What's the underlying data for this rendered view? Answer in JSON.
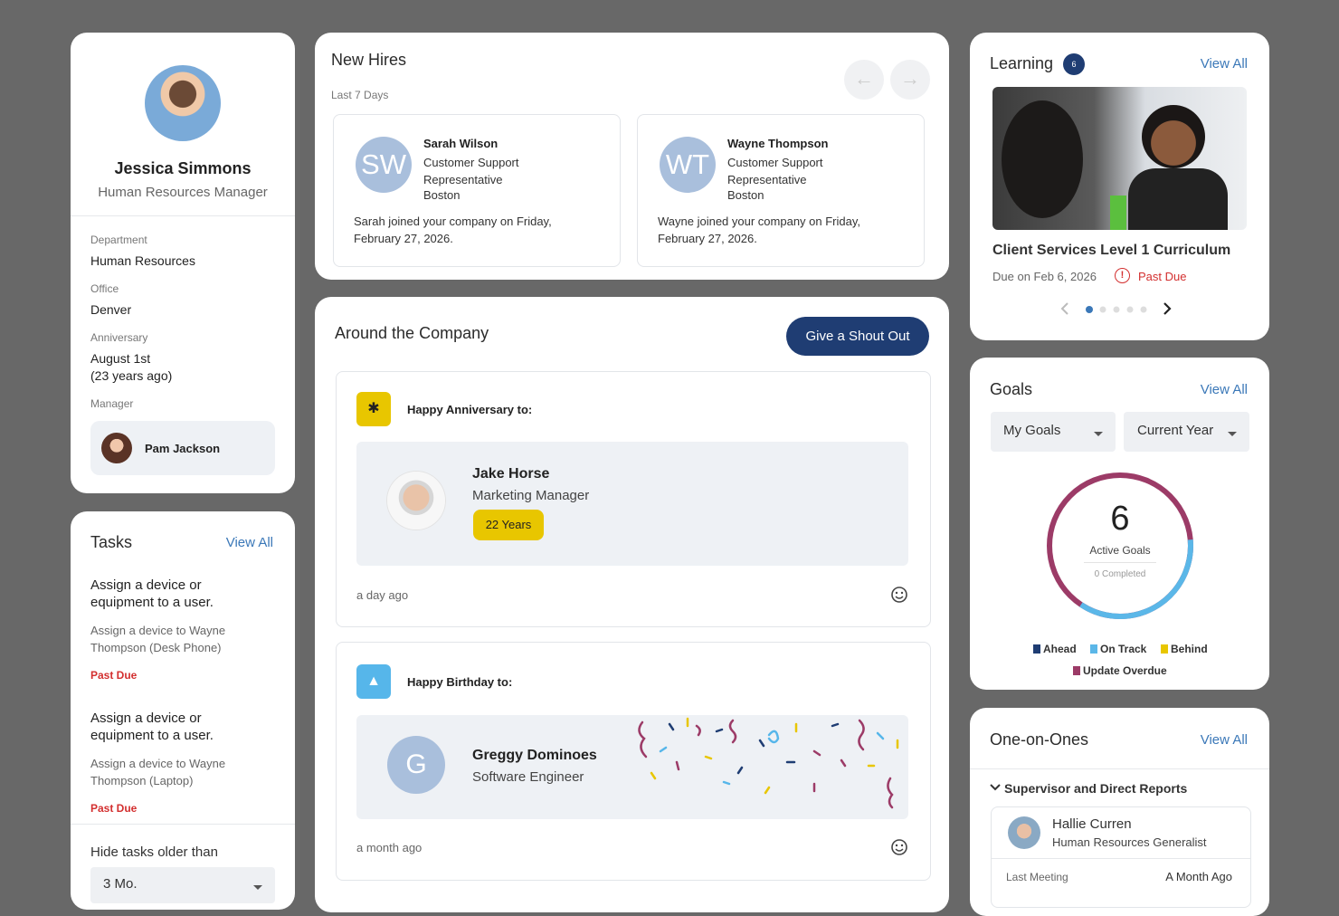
{
  "profile": {
    "name": "Jessica Simmons",
    "title": "Human Resources Manager",
    "fields": [
      {
        "label": "Department",
        "value": "Human Resources"
      },
      {
        "label": "Office",
        "value": "Denver"
      },
      {
        "label": "Anniversary",
        "value": "August 1st",
        "note": "(23 years ago)"
      }
    ],
    "manager_label": "Manager",
    "manager": "Pam Jackson"
  },
  "tasks": {
    "title": "Tasks",
    "view_all": "View All",
    "items": [
      {
        "title": "Assign a device or equipment to a user.",
        "detail": "Assign a device to Wayne Thompson (Desk Phone)",
        "status": "Past Due"
      },
      {
        "title": "Assign a device or equipment to a user.",
        "detail": "Assign a device to Wayne Thompson (Laptop)",
        "status": "Past Due"
      }
    ],
    "filter_label": "Hide tasks older than",
    "filter_value": "3 Mo."
  },
  "new_hires": {
    "title": "New Hires",
    "subtitle": "Last 7 Days",
    "hires": [
      {
        "initials": "SW",
        "name": "Sarah Wilson",
        "role": "Customer Support Representative",
        "location": "Boston",
        "message": "Sarah joined your company on Friday, February 27, 2026."
      },
      {
        "initials": "WT",
        "name": "Wayne Thompson",
        "role": "Customer Support Representative",
        "location": "Boston",
        "message": "Wayne joined your company on Friday, February 27, 2026."
      }
    ]
  },
  "around": {
    "title": "Around the Company",
    "button": "Give a Shout Out",
    "posts": [
      {
        "heading": "Happy Anniversary to:",
        "name": "Jake Horse",
        "role": "Marketing Manager",
        "badge": "22 Years",
        "time": "a day ago"
      },
      {
        "heading": "Happy Birthday to:",
        "initial": "G",
        "name": "Greggy Dominoes",
        "role": "Software Engineer",
        "time": "a month ago"
      }
    ]
  },
  "learning": {
    "title": "Learning",
    "count": 6,
    "view_all": "View All",
    "course": "Client Services Level 1 Curriculum",
    "due": "Due on Feb 6, 2026",
    "status": "Past Due"
  },
  "goals": {
    "title": "Goals",
    "view_all": "View All",
    "filters": [
      "My Goals",
      "Current Year"
    ],
    "active": 6,
    "active_label": "Active Goals",
    "completed_label": "0 Completed",
    "legend": [
      "Ahead",
      "On Track",
      "Behind",
      "Update Overdue"
    ]
  },
  "one_on_ones": {
    "title": "One-on-Ones",
    "view_all": "View All",
    "group": "Supervisor and Direct Reports",
    "person": {
      "name": "Hallie Curren",
      "role": "Human Resources Generalist"
    },
    "last_meeting_label": "Last Meeting",
    "last_meeting": "A Month Ago"
  }
}
